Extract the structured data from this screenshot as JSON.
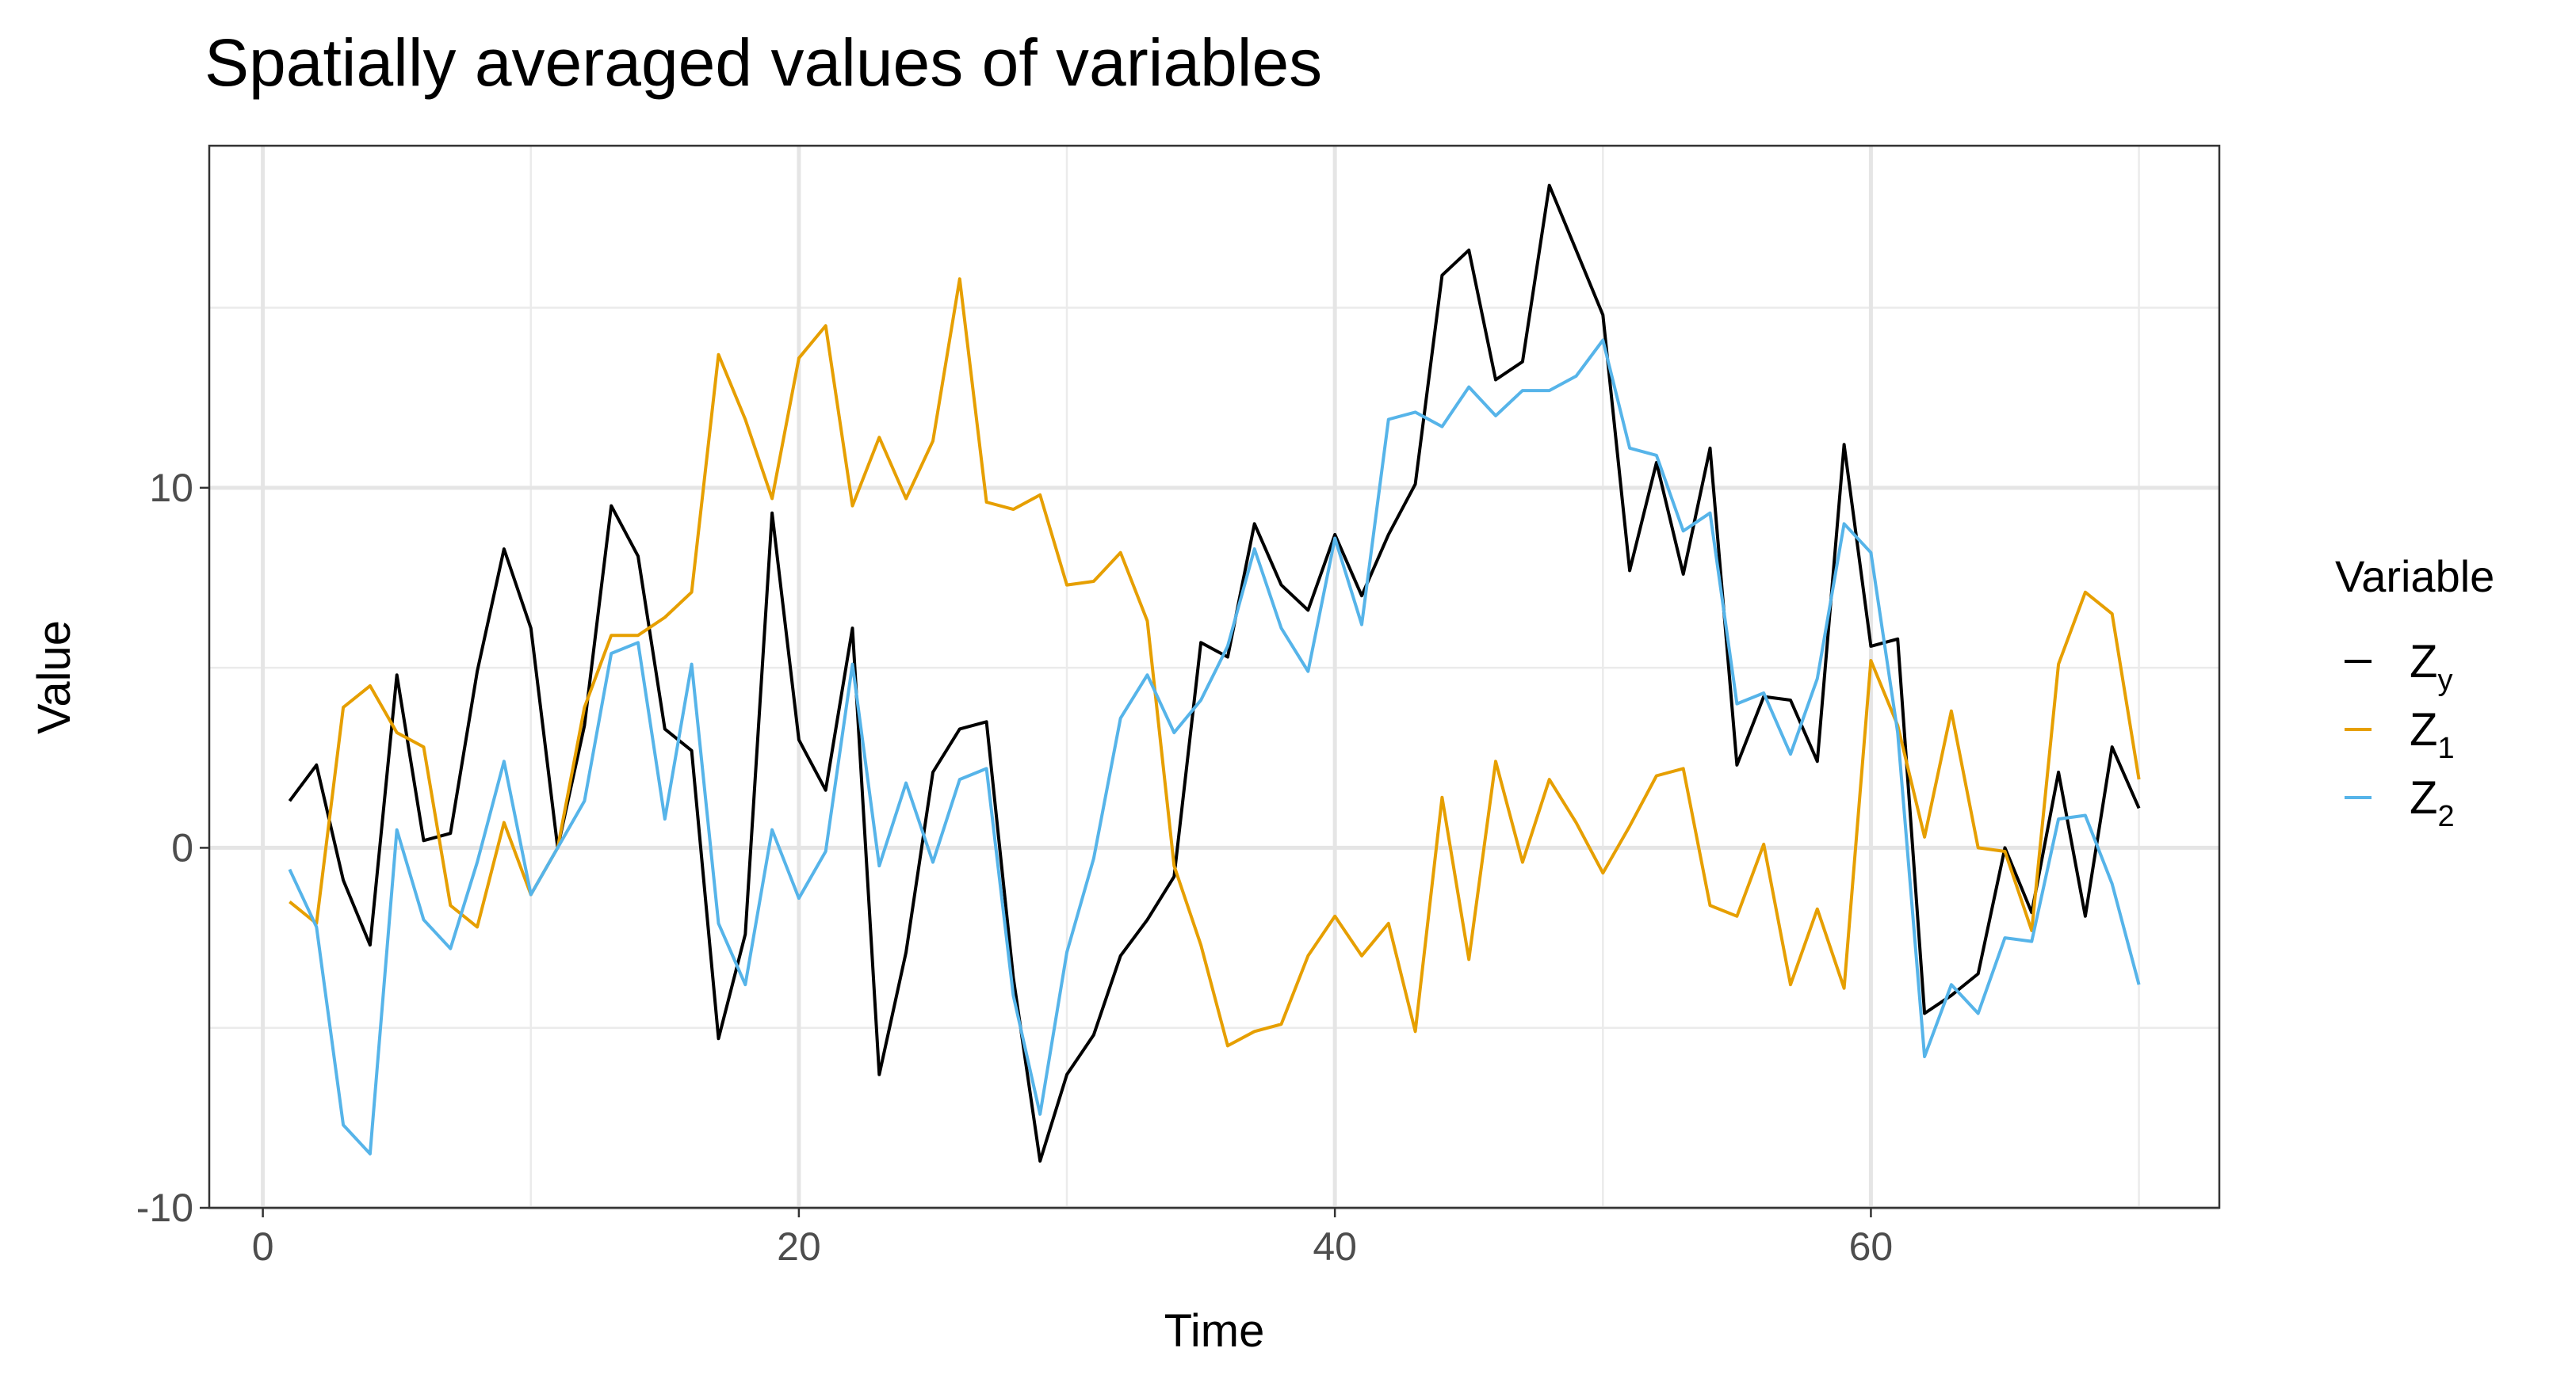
{
  "chart_data": {
    "type": "line",
    "title": "Spatially averaged values of variables",
    "xlabel": "Time",
    "ylabel": "Value",
    "xlim": [
      -2,
      73
    ],
    "ylim": [
      -10,
      19.5
    ],
    "x_ticks": [
      0,
      20,
      40,
      60
    ],
    "x_tick_labels": [
      "0",
      "20",
      "40",
      "60"
    ],
    "y_ticks": [
      -10,
      0,
      10
    ],
    "y_tick_labels": [
      "-10",
      "0",
      "10"
    ],
    "grid": true,
    "legend_position": "right",
    "legend_title": "Variable",
    "x": [
      1,
      2,
      3,
      4,
      5,
      6,
      7,
      8,
      9,
      10,
      11,
      12,
      13,
      14,
      15,
      16,
      17,
      18,
      19,
      20,
      21,
      22,
      23,
      24,
      25,
      26,
      27,
      28,
      29,
      30,
      31,
      32,
      33,
      34,
      35,
      36,
      37,
      38,
      39,
      40,
      41,
      42,
      43,
      44,
      45,
      46,
      47,
      48,
      49,
      50,
      51,
      52,
      53,
      54,
      55,
      56,
      57,
      58,
      59,
      60,
      61,
      62,
      63,
      64,
      65,
      66,
      67,
      68,
      69,
      70
    ],
    "series": [
      {
        "name": "Z",
        "subscript": "y",
        "color": "#000000",
        "values": [
          1.3,
          2.3,
          -0.9,
          -2.7,
          4.8,
          0.2,
          0.4,
          4.9,
          8.3,
          6.1,
          0.0,
          3.4,
          9.5,
          8.1,
          3.3,
          2.7,
          -5.3,
          -2.4,
          9.3,
          3.0,
          1.6,
          6.1,
          -6.3,
          -2.9,
          2.1,
          3.3,
          3.5,
          -3.6,
          -8.7,
          -6.3,
          -5.2,
          -3.0,
          -2.0,
          -0.8,
          5.7,
          5.3,
          9.0,
          7.3,
          6.6,
          8.7,
          7.0,
          8.7,
          10.1,
          15.9,
          16.6,
          13.0,
          13.5,
          18.4,
          16.6,
          14.8,
          7.7,
          10.7,
          7.6,
          11.1,
          2.3,
          4.2,
          4.1,
          2.4,
          11.2,
          5.6,
          5.8,
          -4.6,
          -4.1,
          -3.5,
          0.0,
          -1.8,
          2.1,
          -1.9,
          2.8,
          1.1
        ]
      },
      {
        "name": "Z",
        "subscript": "1",
        "color": "#E69F00",
        "values": [
          -1.5,
          -2.1,
          3.9,
          4.5,
          3.2,
          2.8,
          -1.6,
          -2.2,
          0.7,
          -1.3,
          0.0,
          3.9,
          5.9,
          5.9,
          6.4,
          7.1,
          13.7,
          11.9,
          9.7,
          13.6,
          14.5,
          9.5,
          11.4,
          9.7,
          11.3,
          15.8,
          9.6,
          9.4,
          9.8,
          7.3,
          7.4,
          8.2,
          6.3,
          -0.5,
          -2.7,
          -5.5,
          -5.1,
          -4.9,
          -3.0,
          -1.9,
          -3.0,
          -2.1,
          -5.1,
          1.4,
          -3.1,
          2.4,
          -0.4,
          1.9,
          0.7,
          -0.7,
          0.6,
          2.0,
          2.2,
          -1.6,
          -1.9,
          0.1,
          -3.8,
          -1.7,
          -3.9,
          5.2,
          3.4,
          0.3,
          3.8,
          0.0,
          -0.1,
          -2.3,
          5.1,
          7.1,
          6.5,
          1.9
        ]
      },
      {
        "name": "Z",
        "subscript": "2",
        "color": "#56B4E9",
        "values": [
          -0.6,
          -2.2,
          -7.7,
          -8.5,
          0.5,
          -2.0,
          -2.8,
          -0.4,
          2.4,
          -1.3,
          0.0,
          1.3,
          5.4,
          5.7,
          0.8,
          5.1,
          -2.1,
          -3.8,
          0.5,
          -1.4,
          -0.1,
          5.1,
          -0.5,
          1.8,
          -0.4,
          1.9,
          2.2,
          -4.1,
          -7.4,
          -2.9,
          -0.3,
          3.6,
          4.8,
          3.2,
          4.1,
          5.6,
          8.3,
          6.1,
          4.9,
          8.6,
          6.2,
          11.9,
          12.1,
          11.7,
          12.8,
          12.0,
          12.7,
          12.7,
          13.1,
          14.1,
          11.1,
          10.9,
          8.8,
          9.3,
          4.0,
          4.3,
          2.6,
          4.7,
          9.0,
          8.2,
          3.2,
          -5.8,
          -3.8,
          -4.6,
          -2.5,
          -2.6,
          0.8,
          0.9,
          -1.0,
          -3.8
        ]
      }
    ]
  }
}
